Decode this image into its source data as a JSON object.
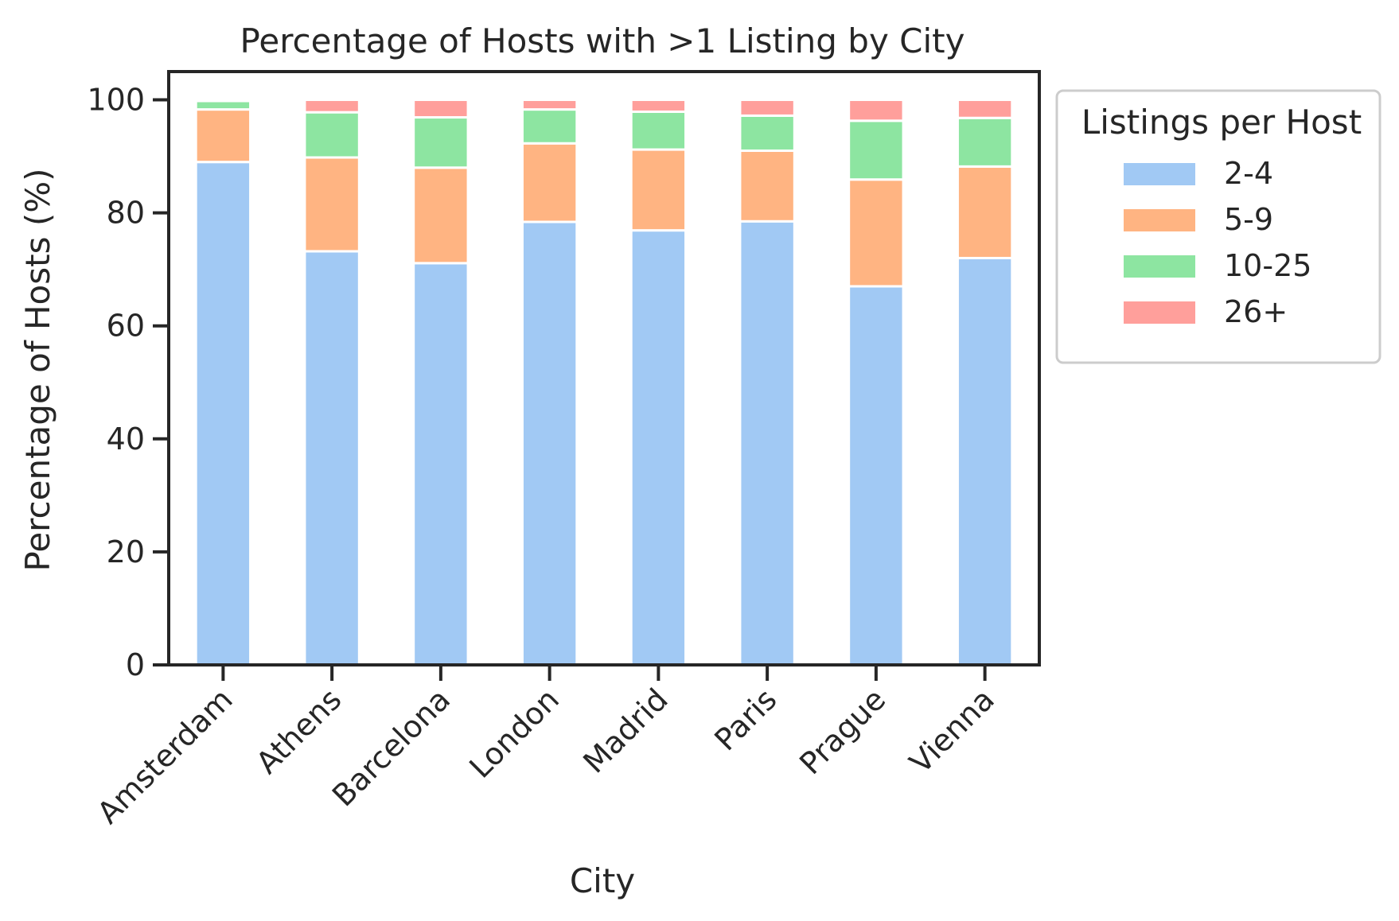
{
  "chart_data": {
    "type": "bar",
    "stacked": true,
    "title": "Percentage of Hosts with >1 Listing by City",
    "xlabel": "City",
    "ylabel": "Percentage of Hosts (%)",
    "ylim": [
      0,
      105
    ],
    "yticks": [
      0,
      20,
      40,
      60,
      80,
      100
    ],
    "grid": false,
    "legend": {
      "title": "Listings per Host",
      "placement": "outside-right"
    },
    "categories": [
      "Amsterdam",
      "Athens",
      "Barcelona",
      "London",
      "Madrid",
      "Paris",
      "Prague",
      "Vienna"
    ],
    "series": [
      {
        "name": "2-4",
        "color": "#a1c9f4",
        "values": [
          89.0,
          73.2,
          71.1,
          78.4,
          76.9,
          78.5,
          67.0,
          72.0
        ]
      },
      {
        "name": "5-9",
        "color": "#ffb482",
        "values": [
          9.3,
          16.6,
          16.9,
          13.9,
          14.3,
          12.5,
          18.9,
          16.2
        ]
      },
      {
        "name": "10-25",
        "color": "#8de5a1",
        "values": [
          1.5,
          8.0,
          8.9,
          6.0,
          6.7,
          6.2,
          10.4,
          8.6
        ]
      },
      {
        "name": "26+",
        "color": "#ff9f9b",
        "values": [
          0.2,
          2.2,
          3.1,
          1.7,
          2.1,
          2.8,
          3.7,
          3.2
        ]
      }
    ]
  }
}
